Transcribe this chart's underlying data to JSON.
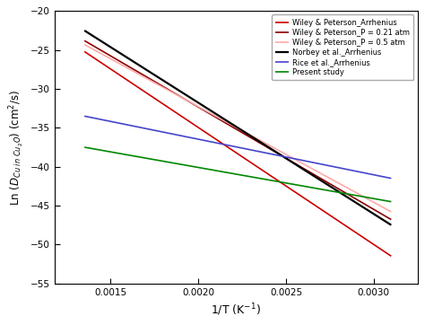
{
  "lines": [
    {
      "label": "Wiley & Peterson_Arrhenius",
      "color": "#cc0000",
      "linewidth": 1.2,
      "x": [
        0.00135,
        0.0031
      ],
      "y": [
        -25.2,
        -51.5
      ]
    },
    {
      "label": "Wiley & Peterson_P = 0.21 atm",
      "color": "#8b0000",
      "linewidth": 1.2,
      "x": [
        0.00135,
        0.0031
      ],
      "y": [
        -23.8,
        -46.8
      ]
    },
    {
      "label": "Wiley & Peterson_P = 0.5 atm",
      "color": "#ffaaaa",
      "linewidth": 1.2,
      "x": [
        0.00135,
        0.0031
      ],
      "y": [
        -24.3,
        -45.8
      ]
    },
    {
      "label": "Norbey et al._Arrhenius",
      "color": "#000000",
      "linewidth": 1.6,
      "x": [
        0.00135,
        0.0031
      ],
      "y": [
        -22.5,
        -47.5
      ]
    },
    {
      "label": "Rice et al._Arrhenius",
      "color": "#4444cc",
      "linewidth": 1.2,
      "x": [
        0.00135,
        0.0031
      ],
      "y": [
        -33.5,
        -41.5
      ]
    },
    {
      "label": "Present study",
      "color": "#008800",
      "linewidth": 1.2,
      "x": [
        0.00135,
        0.0031
      ],
      "y": [
        -37.5,
        -44.5
      ]
    }
  ],
  "xlabel": "1/T (K$^{-1}$)",
  "xlim": [
    0.00118,
    0.00325
  ],
  "ylim": [
    -55,
    -20
  ],
  "xticks": [
    0.0015,
    0.002,
    0.0025,
    0.003
  ],
  "yticks": [
    -20,
    -25,
    -30,
    -35,
    -40,
    -45,
    -50,
    -55
  ],
  "legend_loc": "upper right",
  "legend_fontsize": 6.0,
  "tick_labelsize": 7.5,
  "xlabel_fontsize": 9.0,
  "ylabel_fontsize": 8.5
}
